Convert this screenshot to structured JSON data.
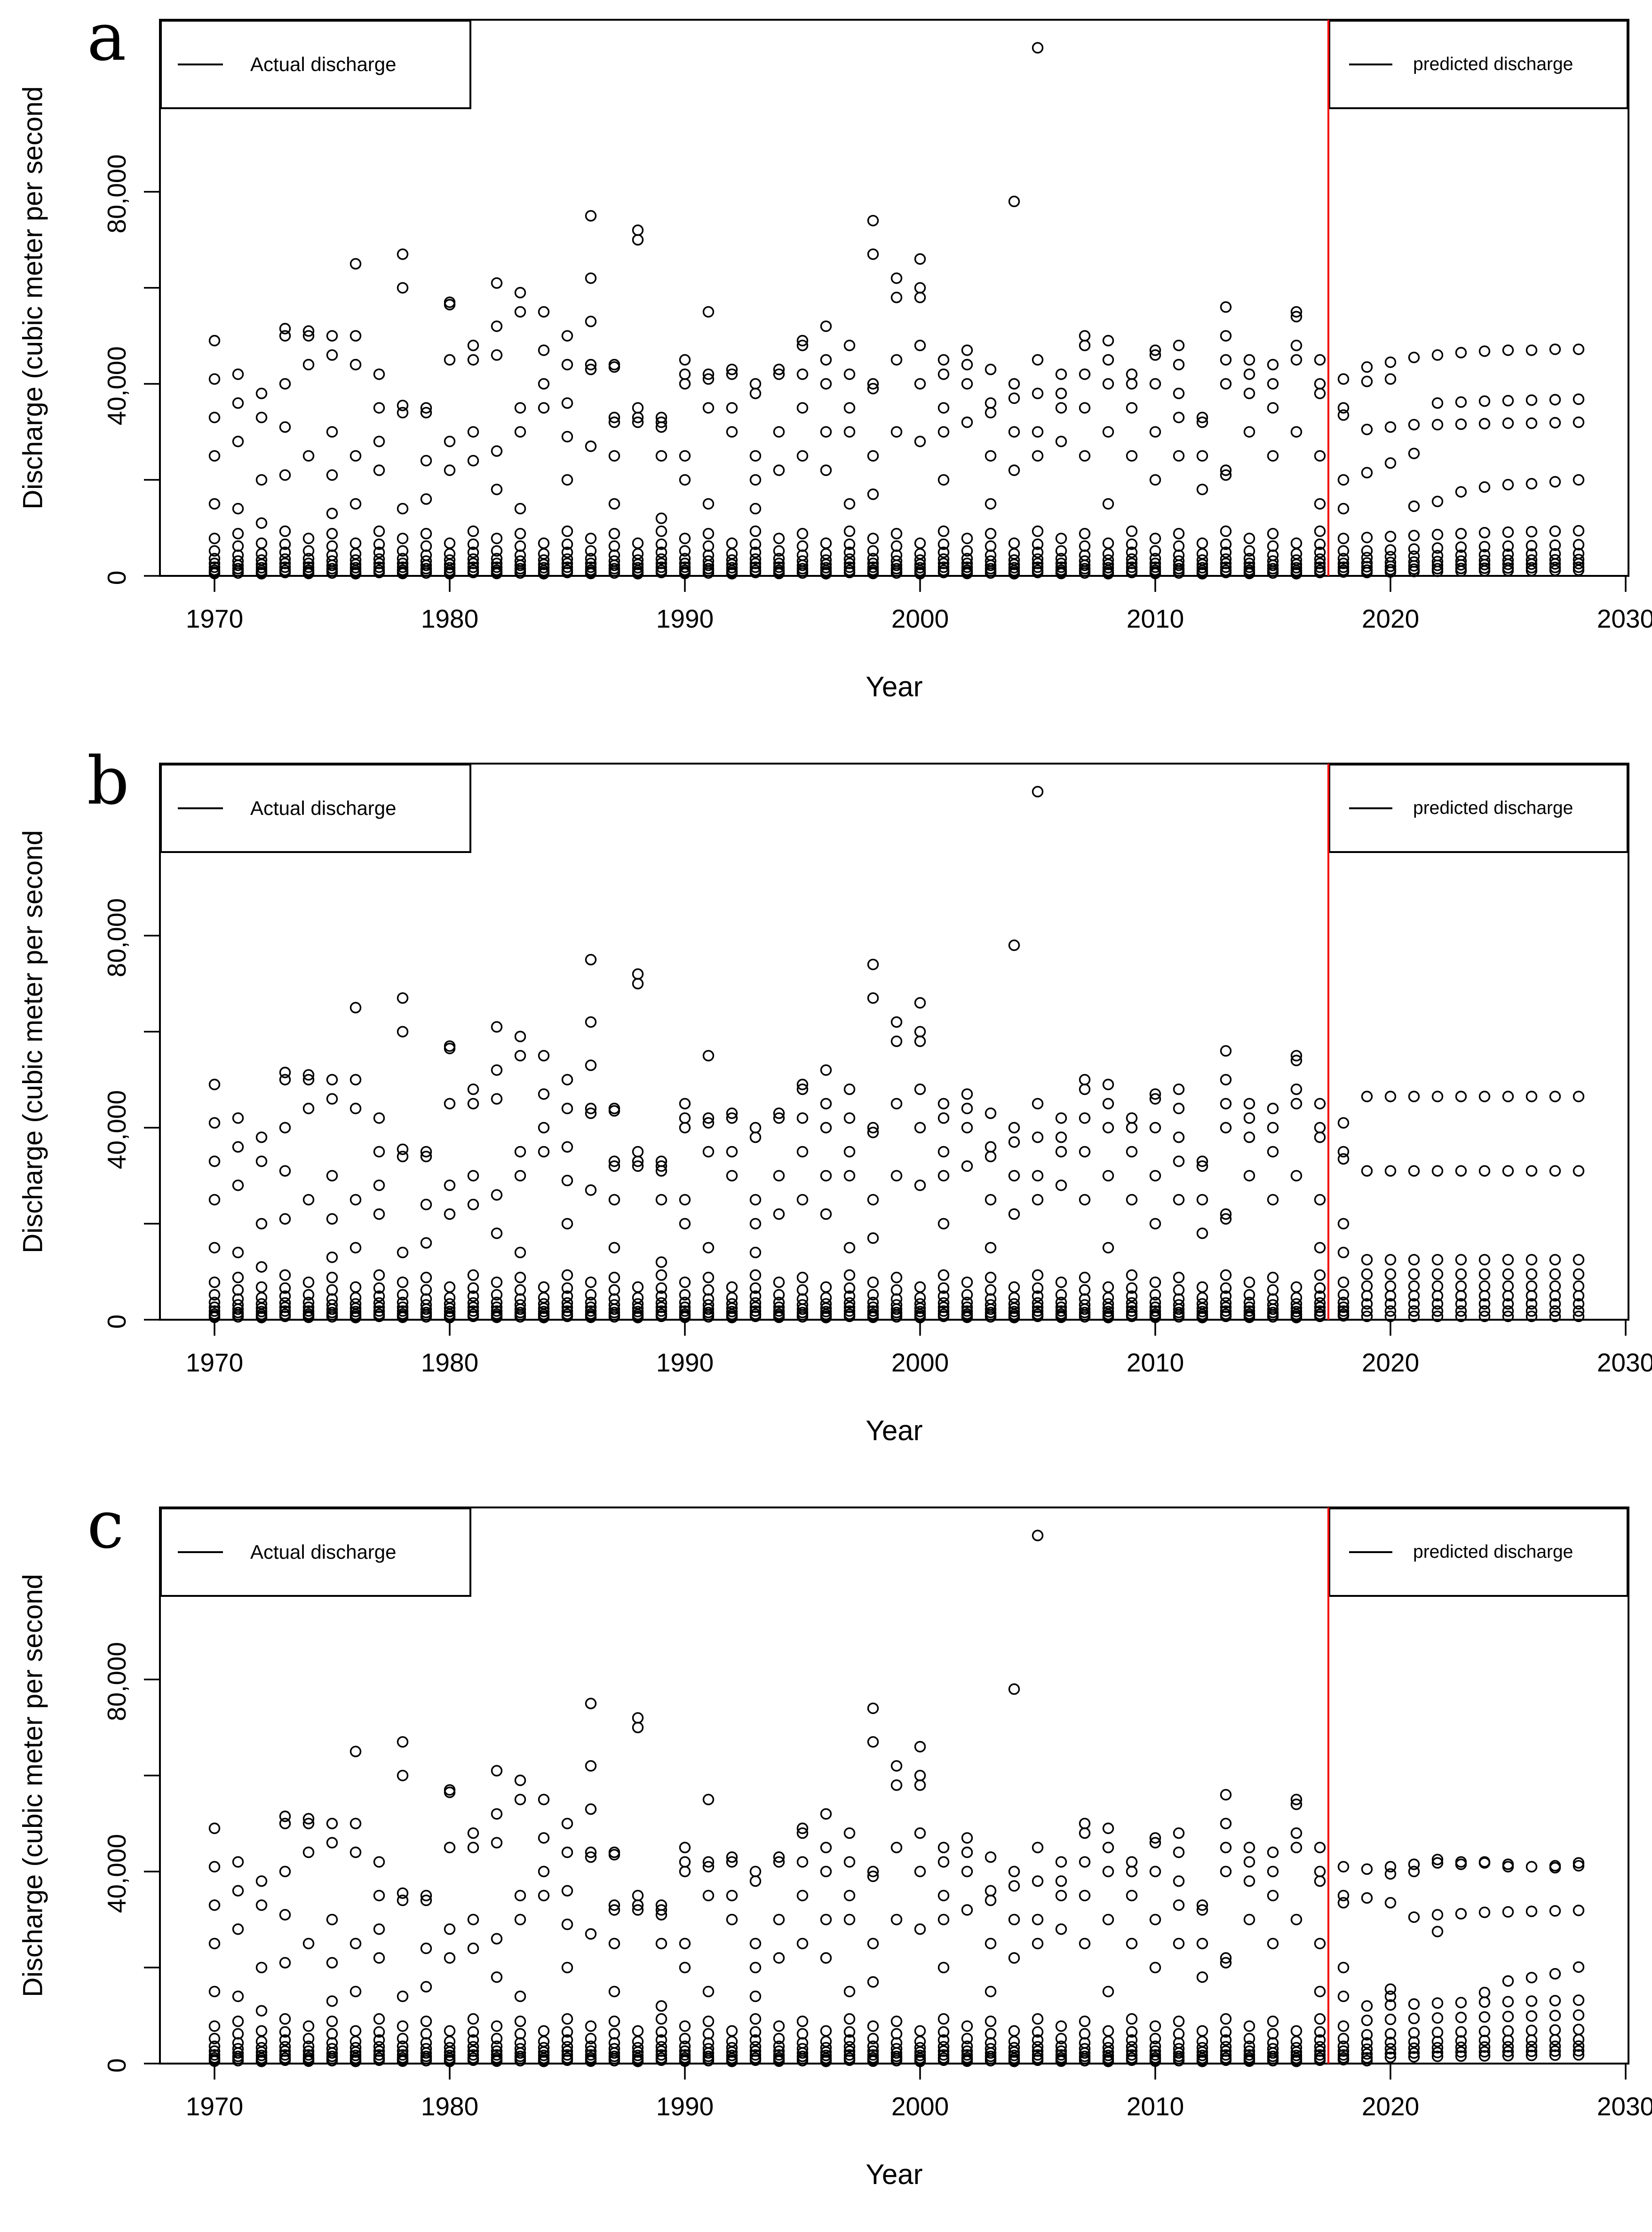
{
  "panel_labels": [
    "a",
    "b",
    "c"
  ],
  "legend": {
    "actual_label": "Actual discharge",
    "predicted_label": "predicted discharge"
  },
  "colors": {
    "forecast_line": "#ff0000",
    "points": "#000000",
    "axis": "#000000"
  },
  "chart_data": {
    "type": "scatter",
    "x_label": "Year",
    "y_label": "Discharge (cubic meter per second",
    "x_ticks": [
      1970,
      1980,
      1990,
      2000,
      2010,
      2020,
      2030
    ],
    "x_tick_labels": [
      "1970",
      "1980",
      "1990",
      "2000",
      "2010",
      "2020",
      "2030"
    ],
    "y_ticks": [
      0,
      20000,
      40000,
      60000,
      80000
    ],
    "y_tick_display_labels": [
      "0",
      "40,000",
      "80,000"
    ],
    "y_tick_display_values": [
      0,
      40000,
      80000
    ],
    "x_range_years": [
      1968,
      2030
    ],
    "y_range": [
      0,
      115000
    ],
    "forecast_divider_year": 2018,
    "grid": false,
    "legend_positions": [
      "top-left",
      "top-right"
    ],
    "marker": "open-circle",
    "actual_series_label": "Actual discharge",
    "predicted_series_label": "predicted discharge",
    "actual_points_by_year": {
      "1970": [
        49000,
        41000,
        33000,
        25000,
        15000,
        7800,
        5200,
        3600,
        2600,
        1800,
        1200,
        800,
        500
      ],
      "1971": [
        42000,
        36000,
        28000,
        14000,
        8800,
        6200,
        4300,
        3100,
        2200,
        1500,
        1000,
        600
      ],
      "1972": [
        38000,
        33000,
        20000,
        11000,
        6800,
        4600,
        3300,
        2400,
        1700,
        1100,
        700,
        450
      ],
      "1973": [
        51500,
        50000,
        40000,
        31000,
        21000,
        9300,
        6600,
        4900,
        3500,
        2600,
        1800,
        1150,
        700
      ],
      "1974": [
        51000,
        50000,
        44000,
        25000,
        7800,
        5200,
        3600,
        2600,
        1800,
        1200,
        800,
        500
      ],
      "1975": [
        50000,
        46000,
        30000,
        21000,
        13000,
        8800,
        6200,
        4300,
        3100,
        2200,
        1500,
        1000,
        600
      ],
      "1976": [
        65000,
        50000,
        44000,
        25000,
        15000,
        6800,
        4600,
        3300,
        2400,
        1700,
        1100,
        700,
        450
      ],
      "1977": [
        42000,
        35000,
        28000,
        22000,
        9300,
        6600,
        4900,
        3500,
        2600,
        1800,
        1150,
        700
      ],
      "1978": [
        67000,
        60000,
        35500,
        34000,
        14000,
        7800,
        5200,
        3600,
        2600,
        1800,
        1200,
        800,
        500
      ],
      "1979": [
        35000,
        34000,
        24000,
        16000,
        8800,
        6200,
        4300,
        3100,
        2200,
        1500,
        1000,
        600
      ],
      "1980": [
        57000,
        56500,
        45000,
        28000,
        22000,
        6800,
        4600,
        3300,
        2400,
        1700,
        1100,
        700,
        450
      ],
      "1981": [
        48000,
        45000,
        30000,
        24000,
        9300,
        6600,
        4900,
        3500,
        2600,
        1800,
        1150,
        700
      ],
      "1982": [
        61000,
        52000,
        46000,
        26000,
        18000,
        7800,
        5200,
        3600,
        2600,
        1800,
        1200,
        800,
        500
      ],
      "1983": [
        59000,
        55000,
        35000,
        30000,
        14000,
        8800,
        6200,
        4300,
        3100,
        2200,
        1500,
        1000,
        600
      ],
      "1984": [
        55000,
        47000,
        40000,
        35000,
        6800,
        4600,
        3300,
        2400,
        1700,
        1100,
        700,
        450
      ],
      "1985": [
        50000,
        44000,
        36000,
        29000,
        20000,
        9300,
        6600,
        4900,
        3500,
        2600,
        1800,
        1150,
        700
      ],
      "1986": [
        75000,
        62000,
        53000,
        44000,
        43000,
        27000,
        7800,
        5200,
        3600,
        2600,
        1800,
        1200,
        800,
        500
      ],
      "1987": [
        44000,
        43500,
        33000,
        32000,
        25000,
        15000,
        8800,
        6200,
        4300,
        3100,
        2200,
        1500,
        1000,
        600
      ],
      "1988": [
        72000,
        70000,
        35000,
        33000,
        32000,
        6800,
        4600,
        3300,
        2400,
        1700,
        1100,
        700,
        450
      ],
      "1989": [
        33000,
        32000,
        31000,
        25000,
        12000,
        9300,
        6600,
        4900,
        3500,
        2600,
        1800,
        1150,
        700
      ],
      "1990": [
        45000,
        42000,
        40000,
        25000,
        20000,
        7800,
        5200,
        3600,
        2600,
        1800,
        1200,
        800,
        500
      ],
      "1991": [
        55000,
        42000,
        41000,
        35000,
        15000,
        8800,
        6200,
        4300,
        3100,
        2200,
        1500,
        1000,
        600
      ],
      "1992": [
        43000,
        42000,
        35000,
        30000,
        6800,
        4600,
        3300,
        2400,
        1700,
        1100,
        700,
        450
      ],
      "1993": [
        40000,
        38000,
        25000,
        20000,
        14000,
        9300,
        6600,
        4900,
        3500,
        2600,
        1800,
        1150,
        700
      ],
      "1994": [
        43000,
        42000,
        30000,
        22000,
        7800,
        5200,
        3600,
        2600,
        1800,
        1200,
        800,
        500
      ],
      "1995": [
        49000,
        48000,
        42000,
        35000,
        25000,
        8800,
        6200,
        4300,
        3100,
        2200,
        1500,
        1000,
        600
      ],
      "1996": [
        52000,
        45000,
        40000,
        30000,
        22000,
        6800,
        4600,
        3300,
        2400,
        1700,
        1100,
        700,
        450
      ],
      "1997": [
        48000,
        42000,
        35000,
        30000,
        15000,
        9300,
        6600,
        4900,
        3500,
        2600,
        1800,
        1150,
        700
      ],
      "1998": [
        74000,
        67000,
        40000,
        39000,
        25000,
        17000,
        7800,
        5200,
        3600,
        2600,
        1800,
        1200,
        800,
        500
      ],
      "1999": [
        62000,
        58000,
        45000,
        30000,
        8800,
        6200,
        4300,
        3100,
        2200,
        1500,
        1000,
        600
      ],
      "2000": [
        66000,
        60000,
        58000,
        48000,
        40000,
        28000,
        6800,
        4600,
        3300,
        2400,
        1700,
        1100,
        700,
        450
      ],
      "2001": [
        45000,
        42000,
        35000,
        30000,
        20000,
        9300,
        6600,
        4900,
        3500,
        2600,
        1800,
        1150,
        700
      ],
      "2002": [
        47000,
        44000,
        40000,
        32000,
        7800,
        5200,
        3600,
        2600,
        1800,
        1200,
        800,
        500
      ],
      "2003": [
        43000,
        36000,
        34000,
        25000,
        15000,
        8800,
        6200,
        4300,
        3100,
        2200,
        1500,
        1000,
        600
      ],
      "2004": [
        78000,
        40000,
        37000,
        30000,
        22000,
        6800,
        4600,
        3300,
        2400,
        1700,
        1100,
        700,
        450
      ],
      "2005": [
        110000,
        45000,
        38000,
        30000,
        25000,
        9300,
        6600,
        4900,
        3500,
        2600,
        1800,
        1150,
        700
      ],
      "2006": [
        42000,
        38000,
        35000,
        28000,
        7800,
        5200,
        3600,
        2600,
        1800,
        1200,
        800,
        500
      ],
      "2007": [
        50000,
        48000,
        42000,
        35000,
        25000,
        8800,
        6200,
        4300,
        3100,
        2200,
        1500,
        1000,
        600
      ],
      "2008": [
        49000,
        45000,
        40000,
        30000,
        15000,
        6800,
        4600,
        3300,
        2400,
        1700,
        1100,
        700,
        450
      ],
      "2009": [
        42000,
        40000,
        35000,
        25000,
        9300,
        6600,
        4900,
        3500,
        2600,
        1800,
        1150,
        700
      ],
      "2010": [
        47000,
        46000,
        40000,
        30000,
        20000,
        7800,
        5200,
        3600,
        2600,
        1800,
        1200,
        800,
        500
      ],
      "2011": [
        48000,
        44000,
        38000,
        33000,
        25000,
        8800,
        6200,
        4300,
        3100,
        2200,
        1500,
        1000,
        600
      ],
      "2012": [
        33000,
        32000,
        25000,
        18000,
        6800,
        4600,
        3300,
        2400,
        1700,
        1100,
        700,
        450
      ],
      "2013": [
        56000,
        50000,
        45000,
        40000,
        22000,
        21000,
        9300,
        6600,
        4900,
        3500,
        2600,
        1800,
        1150,
        700
      ],
      "2014": [
        45000,
        42000,
        38000,
        30000,
        7800,
        5200,
        3600,
        2600,
        1800,
        1200,
        800,
        500
      ],
      "2015": [
        44000,
        40000,
        35000,
        25000,
        8800,
        6200,
        4300,
        3100,
        2200,
        1500,
        1000,
        600
      ],
      "2016": [
        55000,
        54000,
        48000,
        45000,
        30000,
        6800,
        4600,
        3300,
        2400,
        1700,
        1100,
        700,
        450
      ],
      "2017": [
        45000,
        40000,
        38000,
        25000,
        15000,
        9300,
        6600,
        4900,
        3500,
        2600,
        1800,
        1150,
        700
      ],
      "2018": [
        41000,
        35000,
        33500,
        20000,
        14000,
        7800,
        5200,
        3600,
        2600,
        1800,
        1200,
        800
      ]
    },
    "panels": [
      {
        "id": "a",
        "predicted_points_by_year": {
          "2019": [
            43500,
            40500,
            30500,
            21500,
            8000,
            5200,
            3800,
            2700,
            1900,
            1200,
            700
          ],
          "2020": [
            44500,
            41000,
            31000,
            23500,
            8200,
            5400,
            4000,
            2800,
            2000,
            1300,
            800
          ],
          "2021": [
            45500,
            31500,
            25500,
            14500,
            8400,
            5600,
            4100,
            2900,
            2100,
            1400,
            900
          ],
          "2022": [
            46000,
            36000,
            31500,
            15500,
            8600,
            5800,
            4200,
            3000,
            2200,
            1500,
            950
          ],
          "2023": [
            46500,
            36200,
            31600,
            17500,
            8800,
            6000,
            4300,
            3100,
            2300,
            1550,
            1000
          ],
          "2024": [
            46800,
            36400,
            31700,
            18500,
            9000,
            6100,
            4400,
            3200,
            2350,
            1600,
            1050
          ],
          "2025": [
            47000,
            36500,
            31800,
            19000,
            9100,
            6200,
            4500,
            3250,
            2400,
            1650,
            1100
          ],
          "2026": [
            47000,
            36600,
            31800,
            19200,
            9200,
            6300,
            4550,
            3300,
            2450,
            1700,
            1100
          ],
          "2027": [
            47200,
            36700,
            31900,
            19600,
            9300,
            6400,
            4600,
            3350,
            2500,
            1750,
            1150
          ],
          "2028": [
            47200,
            36800,
            32000,
            20000,
            9400,
            6500,
            4650,
            3400,
            2550,
            1800,
            1200
          ]
        }
      },
      {
        "id": "b",
        "predicted_points_by_year": {
          "2019": [
            46500,
            31000,
            12500,
            9500,
            7000,
            5000,
            3300,
            1800,
            700
          ],
          "2020": [
            46500,
            31000,
            12500,
            9500,
            7000,
            5000,
            3300,
            1800,
            700
          ],
          "2021": [
            46500,
            31000,
            12500,
            9500,
            7000,
            5000,
            3300,
            1800,
            700
          ],
          "2022": [
            46500,
            31000,
            12500,
            9500,
            7000,
            5000,
            3300,
            1800,
            700
          ],
          "2023": [
            46500,
            31000,
            12500,
            9500,
            7000,
            5000,
            3300,
            1800,
            700
          ],
          "2024": [
            46500,
            31000,
            12500,
            9500,
            7000,
            5000,
            3300,
            1800,
            700
          ],
          "2025": [
            46500,
            31000,
            12500,
            9500,
            7000,
            5000,
            3300,
            1800,
            700
          ],
          "2026": [
            46500,
            31000,
            12500,
            9500,
            7000,
            5000,
            3300,
            1800,
            700
          ],
          "2027": [
            46500,
            31000,
            12500,
            9500,
            7000,
            5000,
            3300,
            1800,
            700
          ],
          "2028": [
            46500,
            31000,
            12500,
            9500,
            7000,
            5000,
            3300,
            1800,
            700
          ]
        }
      },
      {
        "id": "c",
        "predicted_points_by_year": {
          "2019": [
            40500,
            34500,
            12000,
            9000,
            6000,
            4300,
            3000,
            2000,
            1200,
            600
          ],
          "2020": [
            41000,
            39500,
            33500,
            15500,
            14000,
            12200,
            9200,
            6200,
            4400,
            3100,
            2100,
            1300
          ],
          "2021": [
            41500,
            40000,
            30500,
            12400,
            9400,
            6400,
            4500,
            3200,
            2200,
            1400
          ],
          "2022": [
            42500,
            41800,
            31000,
            27500,
            12600,
            9500,
            6500,
            4600,
            3300,
            2300,
            1500
          ],
          "2023": [
            42000,
            41500,
            31200,
            12700,
            9600,
            6600,
            4700,
            3400,
            2400,
            1550
          ],
          "2024": [
            42000,
            41800,
            31500,
            14800,
            12800,
            9700,
            6700,
            4800,
            3450,
            2450,
            1600
          ],
          "2025": [
            41500,
            41000,
            31600,
            17200,
            12900,
            9800,
            6800,
            4850,
            3500,
            2500,
            1650
          ],
          "2026": [
            41000,
            31700,
            17900,
            13000,
            9900,
            6900,
            4900,
            3550,
            2550,
            1700
          ],
          "2027": [
            41200,
            40800,
            31800,
            18700,
            13100,
            10000,
            7000,
            4950,
            3600,
            2600,
            1750
          ],
          "2028": [
            41800,
            41200,
            31900,
            20100,
            13200,
            10100,
            7100,
            5000,
            3650,
            2650,
            1800
          ]
        }
      }
    ]
  }
}
